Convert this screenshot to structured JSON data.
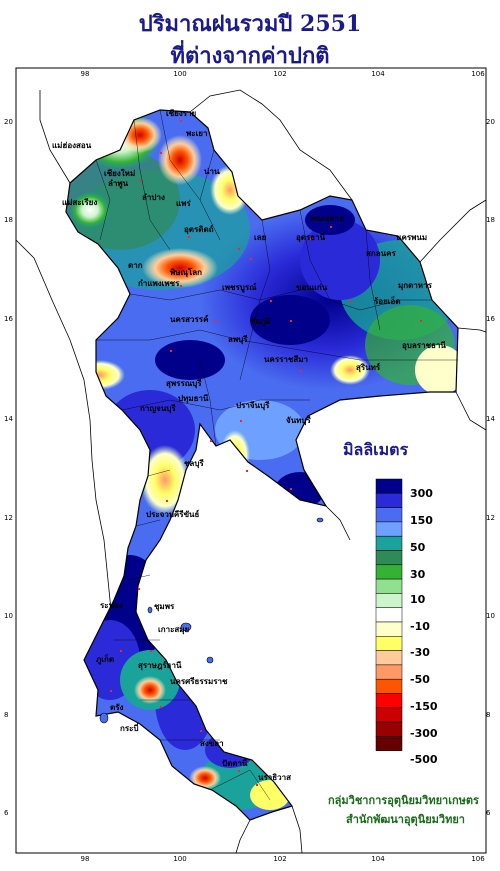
{
  "title": {
    "line1": "ปริมาณฝนรวมปี  2551",
    "line2": "ที่ต่างจากค่าปกติ"
  },
  "axes": {
    "x_ticks": [
      "98",
      "100",
      "102",
      "104",
      "106"
    ],
    "y_ticks": [
      "20",
      "18",
      "16",
      "14",
      "12",
      "10",
      "8",
      "6"
    ]
  },
  "cities": [
    {
      "name": "เชียงราย"
    },
    {
      "name": "แม่ฮ่องสอน"
    },
    {
      "name": "พะเยา"
    },
    {
      "name": "เชียงใหม่"
    },
    {
      "name": "ลำพูน"
    },
    {
      "name": "น่าน"
    },
    {
      "name": "ลำปาง"
    },
    {
      "name": "แพร่"
    },
    {
      "name": "แม่สะเรียง"
    },
    {
      "name": "หนองคาย"
    },
    {
      "name": "นครพนม"
    },
    {
      "name": "อุตรดิตถ์"
    },
    {
      "name": "เลย"
    },
    {
      "name": "อุดรธานี"
    },
    {
      "name": "สกลนคร"
    },
    {
      "name": "ตาก"
    },
    {
      "name": "พิษณุโลก"
    },
    {
      "name": "มุกดาหาร"
    },
    {
      "name": "กำแพงเพชร"
    },
    {
      "name": "เพชรบูรณ์"
    },
    {
      "name": "ขอนแก่น"
    },
    {
      "name": "นครสวรรค์"
    },
    {
      "name": "ชัยภูมิ"
    },
    {
      "name": "ร้อยเอ็ด"
    },
    {
      "name": "อุบลราชธานี"
    },
    {
      "name": "ลพบุรี"
    },
    {
      "name": "นครราชสีมา"
    },
    {
      "name": "สุรินทร์"
    },
    {
      "name": "สุพรรณบุรี"
    },
    {
      "name": "กาญจนบุรี"
    },
    {
      "name": "ปทุมธานี"
    },
    {
      "name": "ปราจีนบุรี"
    },
    {
      "name": "ชลบุรี"
    },
    {
      "name": "จันทบุรี"
    },
    {
      "name": "ประจวบคีรีขันธ์"
    },
    {
      "name": "ชุมพร"
    },
    {
      "name": "ระนอง"
    },
    {
      "name": "สุราษฎร์ธานี"
    },
    {
      "name": "นครศรีธรรมราช"
    },
    {
      "name": "ภูเก็ต"
    },
    {
      "name": "กระบี่"
    },
    {
      "name": "ตรัง"
    },
    {
      "name": "สงขลา"
    },
    {
      "name": "ปัตตานี"
    },
    {
      "name": "นราธิวาส"
    },
    {
      "name": "เกาะสมุย"
    }
  ],
  "legend": {
    "title": "มิลลิเมตร",
    "classes": [
      {
        "color": "#00008b"
      },
      {
        "color": "#2a2ad8"
      },
      {
        "color": "#4a6cf0"
      },
      {
        "color": "#6ea0ff"
      },
      {
        "color": "#1aa39a"
      },
      {
        "color": "#2e8b57"
      },
      {
        "color": "#33b233"
      },
      {
        "color": "#8fe08f"
      },
      {
        "color": "#ccf5cc"
      },
      {
        "color": "#ffffff"
      },
      {
        "color": "#ffffcc"
      },
      {
        "color": "#ffff66"
      },
      {
        "color": "#ffcc99"
      },
      {
        "color": "#ff9966"
      },
      {
        "color": "#ff5500"
      },
      {
        "color": "#ff0000"
      },
      {
        "color": "#cc0000"
      },
      {
        "color": "#990000"
      },
      {
        "color": "#660000"
      }
    ],
    "labels": [
      "300",
      "150",
      "50",
      "30",
      "10",
      "-10",
      "-30",
      "-50",
      "-150",
      "-300",
      "-500"
    ]
  },
  "credits": {
    "line1": "กลุ่มวิชาการอุตุนิยมวิทยาเกษตร",
    "line2": "สำนักพัฒนาอุตุนิยมวิทยา"
  }
}
